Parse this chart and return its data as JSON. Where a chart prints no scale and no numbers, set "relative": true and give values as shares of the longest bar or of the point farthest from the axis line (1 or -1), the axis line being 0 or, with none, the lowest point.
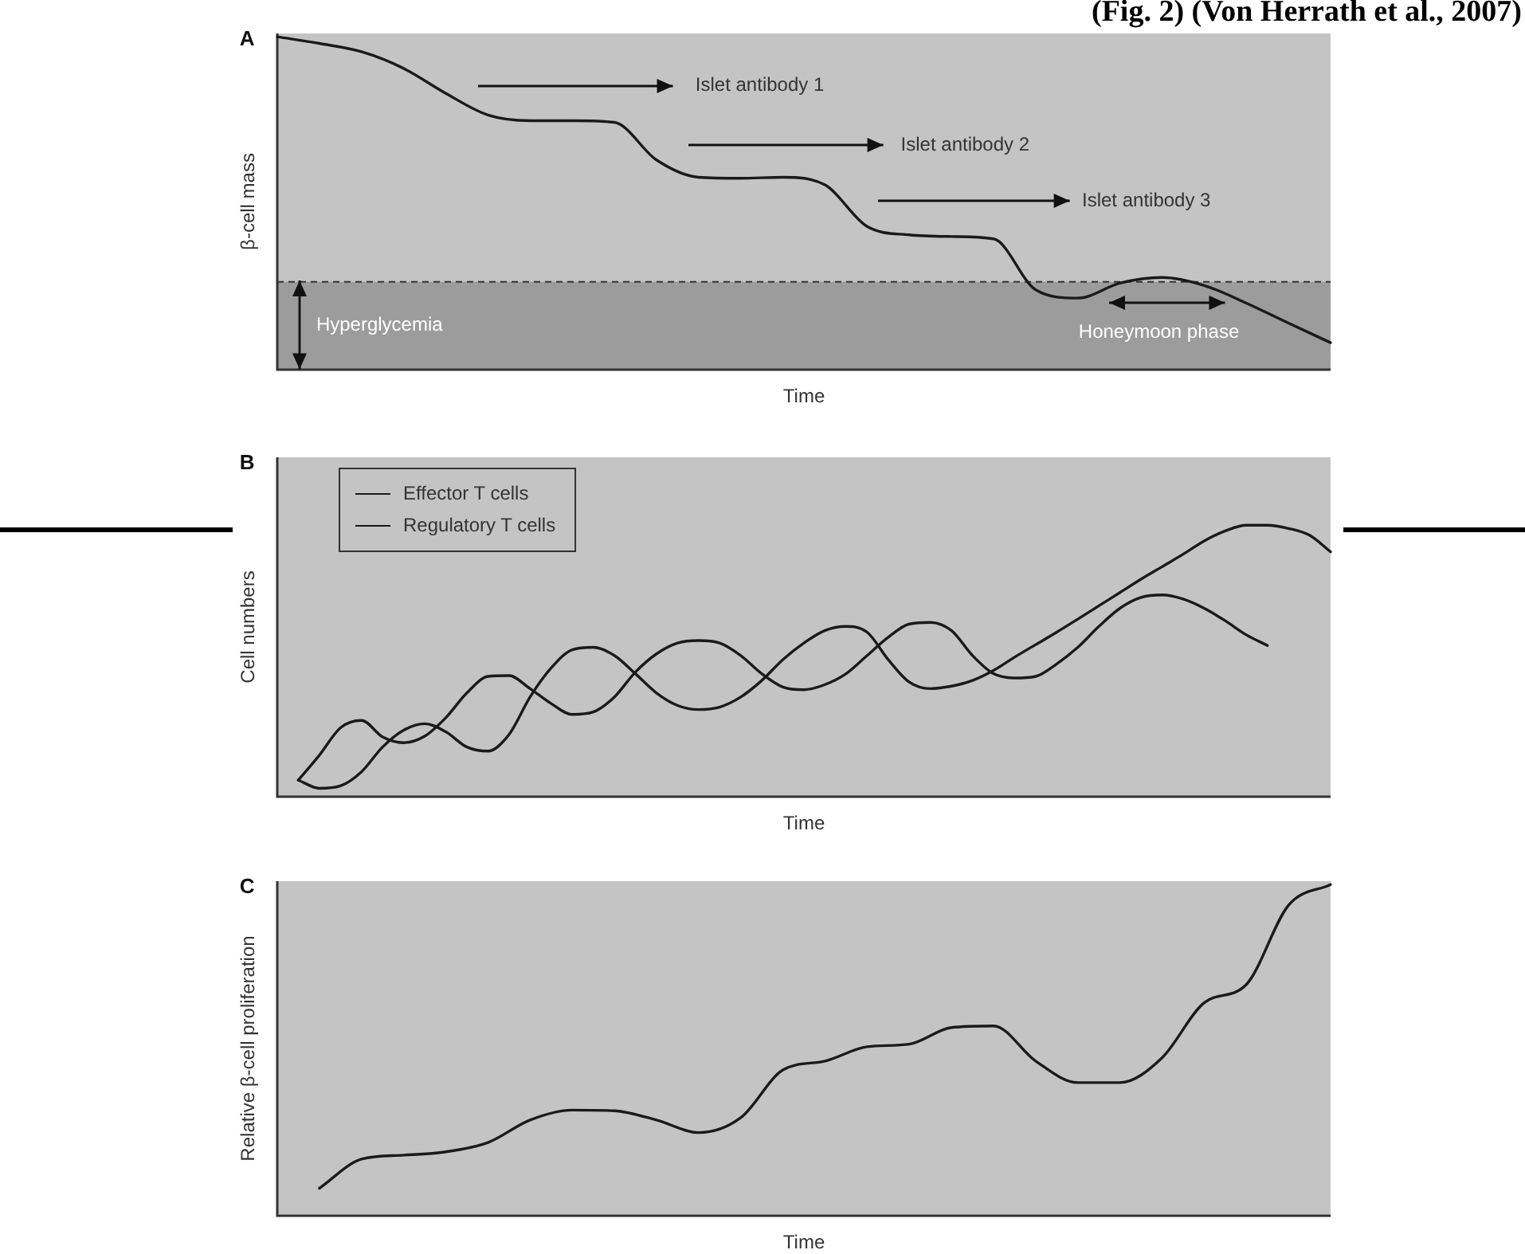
{
  "chart_data": [
    {
      "type": "line",
      "title": "A",
      "xlabel": "Time",
      "ylabel": "β-cell mass",
      "relative": true,
      "marker": "none",
      "categories": [
        null,
        null,
        null,
        null,
        null,
        null,
        null,
        null,
        null,
        null,
        null,
        null,
        null,
        null,
        null,
        null,
        null,
        null,
        null,
        null,
        null,
        null,
        null,
        null,
        null,
        null
      ],
      "series": [
        {
          "color": "#1a1a1a",
          "values": [
            1.0,
            0.98,
            0.955,
            0.905,
            0.83,
            0.765,
            0.748,
            0.748,
            0.743,
            0.63,
            0.578,
            0.575,
            0.578,
            0.555,
            0.43,
            0.405,
            0.4,
            0.393,
            0.24,
            0.215,
            0.26,
            0.277,
            0.253,
            0.2,
            0.14,
            0.081
          ]
        }
      ],
      "bands": [
        {
          "axis": "y",
          "from": 0,
          "to": 0.264,
          "label": "Hyperglycemia",
          "color": "#9c9c9c"
        }
      ],
      "ref_lines": [
        {
          "axis": "y",
          "value": 0.264,
          "color": "#333333",
          "line_style": "dashed"
        }
      ],
      "annotations": [
        "(Fig. 2) (Von Herrath et al., 2007)",
        "Islet antibody 1",
        "Islet antibody 2",
        "Islet antibody 3",
        "Honeymoon phase"
      ]
    },
    {
      "type": "line",
      "title": "B",
      "xlabel": "Time",
      "ylabel": "Cell numbers",
      "relative": true,
      "marker": "none",
      "legend": "top left",
      "categories": [
        null,
        null,
        null,
        null,
        null,
        null,
        null,
        null,
        null,
        null,
        null,
        null,
        null,
        null,
        null,
        null,
        null,
        null,
        null,
        null,
        null,
        null,
        null,
        null,
        null,
        null,
        null,
        null,
        null,
        null,
        null,
        null,
        null,
        null,
        null,
        null,
        null,
        null,
        null,
        null,
        null,
        null,
        null,
        null,
        null,
        null,
        null,
        null,
        null,
        null,
        null
      ],
      "series": [
        {
          "name": "Effector T cells",
          "color": "#1a1a1a",
          "values": [
            null,
            0.061,
            0.153,
            0.254,
            0.281,
            0.22,
            0.199,
            0.223,
            0.291,
            0.382,
            0.443,
            0.446,
            0.398,
            0.343,
            0.303,
            0.312,
            0.367,
            0.459,
            0.526,
            0.566,
            0.575,
            0.566,
            0.52,
            0.453,
            0.404,
            0.394,
            0.413,
            0.453,
            0.52,
            0.587,
            0.636,
            0.642,
            0.612,
            0.52,
            0.453,
            0.437,
            0.443,
            0.489,
            0.55,
            0.627,
            0.694,
            0.734,
            0.743,
            0.728,
            0.694,
            0.648,
            0.596,
            0.557,
            null,
            null,
            null
          ]
        },
        {
          "name": "Regulatory T cells",
          "color": "#1a1a1a",
          "values": [
            null,
            0.061,
            0.031,
            0.04,
            0.092,
            0.183,
            0.245,
            0.269,
            0.239,
            0.183,
            0.168,
            0.229,
            0.367,
            0.474,
            0.541,
            0.55,
            0.52,
            0.453,
            0.382,
            0.336,
            0.321,
            0.33,
            0.367,
            0.428,
            0.505,
            0.566,
            0.612,
            0.627,
            0.606,
            0.505,
            0.422,
            0.398,
            0.407,
            0.428,
            0.465,
            0.514,
            0.56,
            0.606,
            0.654,
            0.703,
            0.752,
            0.801,
            0.847,
            0.893,
            0.942,
            0.979,
            1.0,
            1.0,
            0.988,
            0.963,
            0.902
          ]
        }
      ]
    },
    {
      "type": "line",
      "title": "C",
      "xlabel": "Time",
      "ylabel": "Relative β-cell proliferation",
      "relative": true,
      "marker": "none",
      "categories": [
        null,
        null,
        null,
        null,
        null,
        null,
        null,
        null,
        null,
        null,
        null,
        null,
        null,
        null,
        null,
        null,
        null,
        null,
        null,
        null,
        null,
        null,
        null,
        null,
        null,
        null
      ],
      "series": [
        {
          "color": "#1a1a1a",
          "values": [
            null,
            0.083,
            0.171,
            0.183,
            0.193,
            0.221,
            0.289,
            0.319,
            0.317,
            0.289,
            0.251,
            0.296,
            0.44,
            0.467,
            0.51,
            0.518,
            0.568,
            0.573,
            0.467,
            0.402,
            0.402,
            0.477,
            0.643,
            0.698,
            0.937,
            1.0
          ]
        }
      ]
    }
  ]
}
